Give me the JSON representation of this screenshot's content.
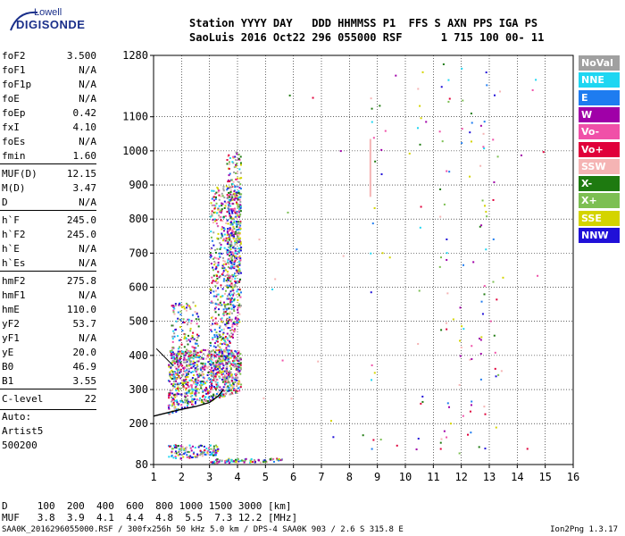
{
  "logo": {
    "brand_top": "Lowell",
    "brand_bottom": "DIGISONDE"
  },
  "header": {
    "line1": "Station YYYY DAY   DDD HHMMSS P1  FFS S AXN PPS IGA PS",
    "line2": "SaoLuis 2016 Oct22 296 055000 RSF      1 715 100 00- 11"
  },
  "parameters": [
    {
      "label": "foF2",
      "value": "3.500"
    },
    {
      "label": "foF1",
      "value": "N/A"
    },
    {
      "label": "foF1p",
      "value": "N/A"
    },
    {
      "label": "foE",
      "value": "N/A"
    },
    {
      "label": "foEp",
      "value": "0.42"
    },
    {
      "label": "fxI",
      "value": "4.10"
    },
    {
      "label": "foEs",
      "value": "N/A"
    },
    {
      "label": "fmin",
      "value": "1.60"
    },
    {
      "label": "MUF(D)",
      "value": "12.15"
    },
    {
      "label": "M(D)",
      "value": "3.47"
    },
    {
      "label": "D",
      "value": "N/A"
    },
    {
      "label": "h`F",
      "value": "245.0"
    },
    {
      "label": "h`F2",
      "value": "245.0"
    },
    {
      "label": "h`E",
      "value": "N/A"
    },
    {
      "label": "h`Es",
      "value": "N/A"
    },
    {
      "label": "hmF2",
      "value": "275.8"
    },
    {
      "label": "hmF1",
      "value": "N/A"
    },
    {
      "label": "hmE",
      "value": "110.0"
    },
    {
      "label": "yF2",
      "value": "53.7"
    },
    {
      "label": "yF1",
      "value": "N/A"
    },
    {
      "label": "yE",
      "value": "20.0"
    },
    {
      "label": "B0",
      "value": "46.9"
    },
    {
      "label": "B1",
      "value": "3.55"
    },
    {
      "label": "C-level",
      "value": "22"
    }
  ],
  "autoscaling": {
    "line1": "Auto:",
    "line2": "Artist5",
    "line3": "500200"
  },
  "legend": [
    {
      "label": "NoVal",
      "color": "#a0a0a0"
    },
    {
      "label": "NNE",
      "color": "#1ed6f2"
    },
    {
      "label": "E",
      "color": "#1e7cf0"
    },
    {
      "label": "W",
      "color": "#a000a8"
    },
    {
      "label": "Vo-",
      "color": "#f050a8"
    },
    {
      "label": "Vo+",
      "color": "#e0003a"
    },
    {
      "label": "SSW",
      "color": "#f5b4b4"
    },
    {
      "label": "X-",
      "color": "#1e7a10"
    },
    {
      "label": "X+",
      "color": "#7cbf52"
    },
    {
      "label": "SSE",
      "color": "#d4d400"
    },
    {
      "label": "NNW",
      "color": "#2010d8"
    }
  ],
  "footer": {
    "line1": "D     100  200  400  600  800 1000 1500 3000 [km]",
    "line2": "MUF   3.8  3.9  4.1  4.4  4.8  5.5  7.3 12.2 [MHz]",
    "file_line": "SAA0K_2016296055000.RSF / 300fx256h 50 kHz 5.0 km / DPS-4 SAA0K 903 / 2.6 S 315.8 E",
    "version": "Ion2Png 1.3.17"
  },
  "chart_data": {
    "type": "scatter",
    "xlim": [
      1,
      16
    ],
    "ylim": [
      80,
      1280
    ],
    "x_ticks": [
      1,
      2,
      3,
      4,
      5,
      6,
      7,
      8,
      9,
      10,
      11,
      12,
      13,
      14,
      15,
      16
    ],
    "y_ticks": [
      80,
      200,
      300,
      400,
      500,
      600,
      700,
      800,
      900,
      1000,
      1100,
      1280
    ],
    "grid": true,
    "trace_frequency_mhz": [
      1.0,
      1.6,
      2.0,
      2.5,
      3.0,
      3.3,
      3.5
    ],
    "trace_height_km": [
      222,
      234,
      242,
      250,
      262,
      280,
      300
    ]
  }
}
